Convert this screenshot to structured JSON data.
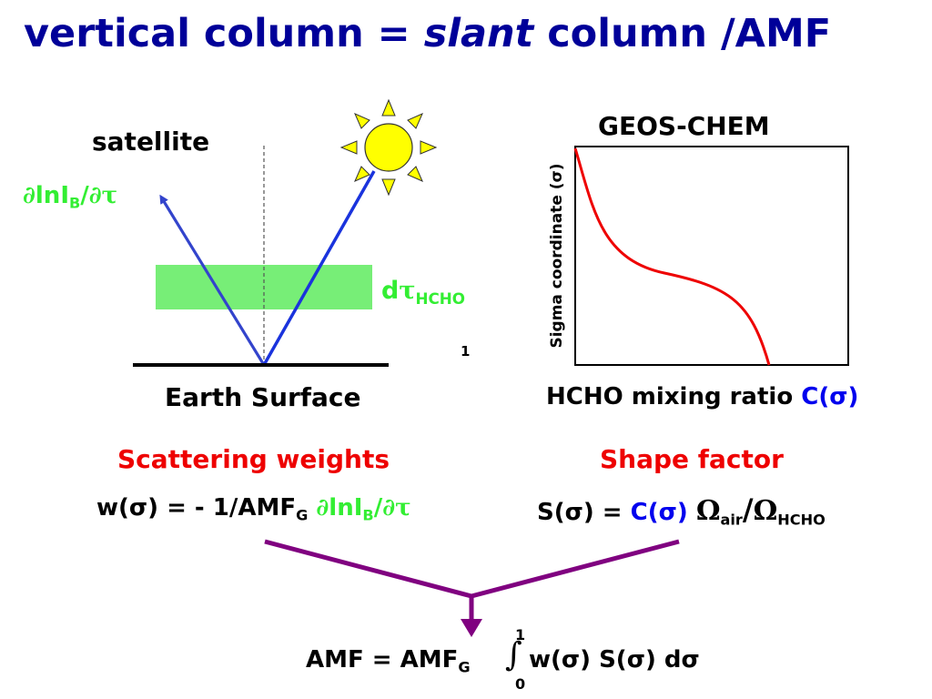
{
  "title": {
    "part1": "vertical column = ",
    "italic": "slant",
    "part2": " column /AMF"
  },
  "left_panel": {
    "satellite_label": "satellite",
    "derivative": {
      "d": "∂",
      "lnI": "lnI",
      "sub": "B",
      "slash": "/",
      "d2": "∂",
      "tau": "τ"
    },
    "layer_label": {
      "d": "d",
      "tau": "τ",
      "sub": "HCHO"
    },
    "one_label": "1",
    "surface_label": "Earth Surface"
  },
  "right_panel": {
    "model_label": "GEOS-CHEM",
    "y_axis_label": "Sigma coordinate (σ)",
    "x_axis_label": {
      "text": "HCHO mixing ratio ",
      "colored": "C(σ)"
    }
  },
  "scattering": {
    "heading": "Scattering weights",
    "formula": {
      "lhs": "w(σ) = - 1/AMF",
      "sub": "G",
      "space": " ",
      "d": "∂",
      "lnI": "lnI",
      "sub2": "B",
      "slash": "/",
      "d2": "∂",
      "tau": "τ"
    }
  },
  "shape": {
    "heading": "Shape factor",
    "formula": {
      "lhs": "S(σ) = ",
      "c": "C(σ)",
      "sp": " ",
      "omega1": "Ω",
      "sub1": "air",
      "slash": "/",
      "omega2": "Ω",
      "sub2": "HCHO"
    }
  },
  "amf": {
    "lhs": "AMF = AMF",
    "sub": "G",
    "integral": "∫",
    "upper": "1",
    "lower": "0",
    "rhs": "w(σ) S(σ) dσ"
  },
  "colors": {
    "title": "#000099",
    "green": "#33ee33",
    "red": "#ee0000",
    "blue": "#0000ee",
    "purple": "#800080",
    "sun": "#ffff00",
    "ray": "#3344cc",
    "layer": "#77ee77"
  }
}
